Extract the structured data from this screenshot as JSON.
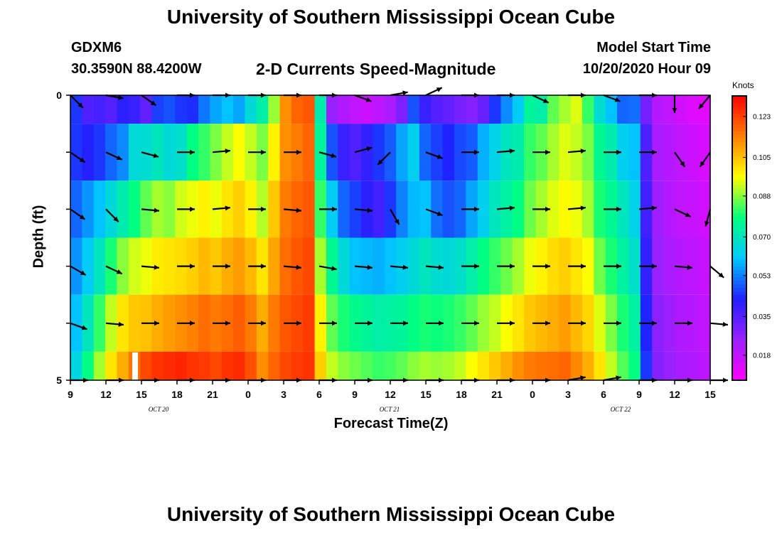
{
  "page": {
    "title": "University of Southern Mississippi Ocean Cube",
    "bottom_title": "University of Southern Mississippi Ocean Cube",
    "station_id": "GDXM6",
    "station_coords": "30.3590N 88.4200W",
    "subtitle": "2-D Currents Speed-Magnitude",
    "model_start_label": "Model Start Time",
    "model_start_value": "10/20/2020 Hour 09"
  },
  "chart_data": {
    "type": "heatmap",
    "title": "2-D Currents Speed-Magnitude",
    "xlabel": "Forecast Time(Z)",
    "ylabel": "Depth (ft)",
    "x_tick_labels": [
      "9",
      "12",
      "15",
      "18",
      "21",
      "0",
      "3",
      "6",
      "9",
      "12",
      "15",
      "18",
      "21",
      "0",
      "3",
      "6",
      "9",
      "12",
      "15"
    ],
    "x_date_labels": [
      "OCT 20",
      "OCT 21",
      "OCT 22"
    ],
    "x_date_label_tick_index": [
      2,
      8.5,
      15
    ],
    "y_tick_labels": [
      "0",
      "",
      "",
      "",
      "",
      "5"
    ],
    "ylim": [
      0,
      5
    ],
    "colorbar": {
      "title": "Knots",
      "tick_values": [
        0.123,
        0.105,
        0.088,
        0.07,
        0.053,
        0.035,
        0.018
      ],
      "tick_labels": [
        "0.123",
        "0.105",
        "0.088",
        "0.070",
        "0.053",
        "0.035",
        "0.018"
      ],
      "range": [
        0.007,
        0.132
      ],
      "colors": [
        "#ff00ff",
        "#9a20ff",
        "#2020ff",
        "#00c8ff",
        "#00ff80",
        "#ffff00",
        "#ff8000",
        "#ff0000"
      ]
    },
    "n_time_steps": 55,
    "depth_layers": [
      0,
      1,
      2,
      3,
      4,
      5
    ],
    "speed_rows": [
      [
        0.045,
        0.036,
        0.037,
        0.035,
        0.041,
        0.039,
        0.033,
        0.046,
        0.048,
        0.045,
        0.044,
        0.052,
        0.057,
        0.06,
        0.057,
        0.066,
        0.073,
        0.089,
        0.112,
        0.118,
        0.12,
        0.072,
        0.025,
        0.021,
        0.018,
        0.016,
        0.019,
        0.022,
        0.029,
        0.048,
        0.039,
        0.035,
        0.033,
        0.03,
        0.028,
        0.032,
        0.045,
        0.054,
        0.062,
        0.075,
        0.073,
        0.085,
        0.09,
        0.094,
        0.082,
        0.067,
        0.06,
        0.05,
        0.051,
        0.03,
        0.02,
        0.018,
        0.015,
        0.013,
        0.012
      ],
      [
        0.045,
        0.042,
        0.045,
        0.05,
        0.054,
        0.066,
        0.067,
        0.07,
        0.066,
        0.068,
        0.078,
        0.082,
        0.087,
        0.092,
        0.096,
        0.092,
        0.087,
        0.098,
        0.112,
        0.115,
        0.118,
        0.075,
        0.048,
        0.039,
        0.036,
        0.04,
        0.045,
        0.049,
        0.057,
        0.063,
        0.05,
        0.046,
        0.043,
        0.047,
        0.049,
        0.058,
        0.064,
        0.07,
        0.072,
        0.082,
        0.085,
        0.09,
        0.094,
        0.092,
        0.087,
        0.076,
        0.072,
        0.063,
        0.06,
        0.036,
        0.022,
        0.02,
        0.018,
        0.016,
        0.014
      ],
      [
        0.05,
        0.055,
        0.06,
        0.066,
        0.072,
        0.078,
        0.085,
        0.09,
        0.088,
        0.093,
        0.095,
        0.098,
        0.095,
        0.1,
        0.103,
        0.098,
        0.091,
        0.104,
        0.115,
        0.118,
        0.12,
        0.082,
        0.062,
        0.05,
        0.046,
        0.041,
        0.038,
        0.045,
        0.053,
        0.059,
        0.06,
        0.051,
        0.048,
        0.05,
        0.057,
        0.063,
        0.07,
        0.074,
        0.078,
        0.086,
        0.09,
        0.094,
        0.097,
        0.095,
        0.09,
        0.08,
        0.076,
        0.07,
        0.064,
        0.038,
        0.024,
        0.02,
        0.018,
        0.017,
        0.015
      ],
      [
        0.055,
        0.062,
        0.07,
        0.08,
        0.088,
        0.093,
        0.095,
        0.099,
        0.1,
        0.101,
        0.103,
        0.106,
        0.104,
        0.108,
        0.11,
        0.106,
        0.1,
        0.109,
        0.117,
        0.12,
        0.122,
        0.09,
        0.076,
        0.066,
        0.06,
        0.059,
        0.058,
        0.06,
        0.063,
        0.066,
        0.07,
        0.067,
        0.066,
        0.068,
        0.073,
        0.078,
        0.082,
        0.086,
        0.09,
        0.095,
        0.098,
        0.101,
        0.103,
        0.1,
        0.096,
        0.086,
        0.08,
        0.074,
        0.068,
        0.04,
        0.025,
        0.022,
        0.02,
        0.019,
        0.017
      ],
      [
        0.06,
        0.07,
        0.082,
        0.092,
        0.1,
        0.104,
        0.105,
        0.108,
        0.11,
        0.112,
        0.114,
        0.117,
        0.115,
        0.117,
        0.119,
        0.115,
        0.108,
        0.115,
        0.12,
        0.122,
        0.124,
        0.098,
        0.085,
        0.08,
        0.077,
        0.075,
        0.073,
        0.074,
        0.075,
        0.078,
        0.08,
        0.079,
        0.08,
        0.082,
        0.085,
        0.089,
        0.092,
        0.096,
        0.1,
        0.104,
        0.106,
        0.108,
        0.11,
        0.106,
        0.102,
        0.094,
        0.087,
        0.08,
        0.074,
        0.043,
        0.027,
        0.024,
        0.021,
        0.02,
        0.018
      ],
      [
        0.065,
        0.078,
        0.09,
        0.1,
        0.108,
        0.116,
        0.122,
        0.125,
        0.126,
        0.127,
        0.125,
        0.124,
        0.122,
        0.125,
        0.126,
        0.121,
        0.112,
        0.118,
        0.122,
        0.124,
        0.125,
        0.103,
        0.092,
        0.088,
        0.086,
        0.084,
        0.082,
        0.083,
        0.085,
        0.088,
        0.09,
        0.089,
        0.09,
        0.092,
        0.096,
        0.1,
        0.104,
        0.108,
        0.112,
        0.115,
        0.116,
        0.117,
        0.118,
        0.113,
        0.108,
        0.1,
        0.092,
        0.084,
        0.078,
        0.045,
        0.028,
        0.025,
        0.022,
        0.021,
        0.019
      ]
    ],
    "vectors": {
      "time_steps": [
        0,
        3,
        6,
        9,
        12,
        15,
        18,
        21,
        24,
        27,
        30,
        33,
        36,
        39,
        42,
        45,
        48,
        51,
        54
      ],
      "depths": [
        0,
        1,
        2,
        3,
        4,
        5
      ],
      "directions_deg": [
        [
          135,
          100,
          125,
          90,
          90,
          90,
          90,
          90,
          110,
          80,
          65,
          90,
          90,
          115,
          90,
          110,
          90,
          180,
          220
        ],
        [
          125,
          115,
          105,
          90,
          85,
          90,
          90,
          105,
          75,
          225,
          110,
          90,
          85,
          90,
          85,
          90,
          90,
          145,
          215
        ],
        [
          125,
          135,
          95,
          90,
          85,
          90,
          95,
          90,
          95,
          150,
          110,
          90,
          85,
          90,
          85,
          90,
          85,
          115,
          195
        ],
        [
          120,
          115,
          95,
          90,
          90,
          90,
          95,
          100,
          95,
          95,
          95,
          90,
          90,
          90,
          90,
          90,
          90,
          95,
          130
        ],
        [
          110,
          95,
          90,
          90,
          90,
          90,
          90,
          90,
          90,
          90,
          90,
          90,
          90,
          90,
          90,
          90,
          90,
          90,
          95
        ],
        [
          90,
          90,
          90,
          90,
          90,
          90,
          90,
          90,
          90,
          90,
          90,
          90,
          90,
          90,
          80,
          80,
          90,
          90,
          90
        ]
      ]
    },
    "missing_cells": [
      {
        "time_step": 5,
        "depth_layer": 5
      }
    ]
  }
}
